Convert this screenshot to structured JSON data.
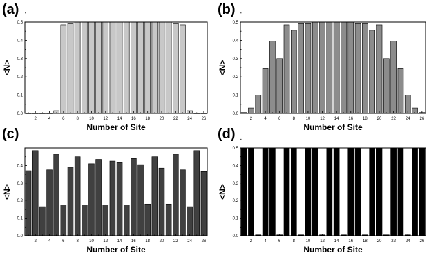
{
  "chart_data": [
    {
      "panel": "(a)",
      "type": "bar",
      "xlabel": "Number of Site",
      "ylabel": "<N>",
      "ylim": [
        0,
        0.5
      ],
      "yticks": [
        "0.0",
        "0.1",
        "0.2",
        "0.3",
        "0.4",
        "0.5"
      ],
      "xticks": [
        "2",
        "4",
        "6",
        "8",
        "10",
        "12",
        "14",
        "16",
        "18",
        "20",
        "22",
        "24",
        "26"
      ],
      "color": "#c8c8c8",
      "x": [
        1,
        2,
        3,
        4,
        5,
        6,
        7,
        8,
        9,
        10,
        11,
        12,
        13,
        14,
        15,
        16,
        17,
        18,
        19,
        20,
        21,
        22,
        23,
        24,
        25,
        26
      ],
      "values": [
        0.0,
        0.0,
        0.0,
        0.0,
        0.015,
        0.485,
        0.495,
        0.5,
        0.5,
        0.5,
        0.5,
        0.5,
        0.5,
        0.5,
        0.5,
        0.5,
        0.5,
        0.5,
        0.5,
        0.5,
        0.5,
        0.495,
        0.485,
        0.015,
        0.0,
        0.0
      ]
    },
    {
      "panel": "(b)",
      "type": "bar",
      "xlabel": "Number of Site",
      "ylabel": "<N>",
      "ylim": [
        0,
        0.5
      ],
      "yticks": [
        "0.0",
        "0.1",
        "0.2",
        "0.3",
        "0.4",
        "0.5"
      ],
      "xticks": [
        "2",
        "4",
        "6",
        "8",
        "10",
        "12",
        "14",
        "16",
        "18",
        "20",
        "22",
        "24",
        "26"
      ],
      "color": "#8c8c8c",
      "x": [
        1,
        2,
        3,
        4,
        5,
        6,
        7,
        8,
        9,
        10,
        11,
        12,
        13,
        14,
        15,
        16,
        17,
        18,
        19,
        20,
        21,
        22,
        23,
        24,
        25,
        26
      ],
      "values": [
        0.005,
        0.03,
        0.1,
        0.245,
        0.395,
        0.3,
        0.485,
        0.455,
        0.495,
        0.495,
        0.5,
        0.5,
        0.5,
        0.5,
        0.5,
        0.5,
        0.495,
        0.495,
        0.455,
        0.485,
        0.3,
        0.395,
        0.245,
        0.1,
        0.03,
        0.005
      ]
    },
    {
      "panel": "(c)",
      "type": "bar",
      "xlabel": "Number of Site",
      "ylabel": "<N>",
      "ylim": [
        0,
        0.5
      ],
      "yticks": [
        "0.0",
        "0.1",
        "0.2",
        "0.3",
        "0.4"
      ],
      "xticks": [
        "2",
        "4",
        "6",
        "8",
        "10",
        "12",
        "14",
        "16",
        "18",
        "20",
        "22",
        "24",
        "26"
      ],
      "color": "#404040",
      "x": [
        1,
        2,
        3,
        4,
        5,
        6,
        7,
        8,
        9,
        10,
        11,
        12,
        13,
        14,
        15,
        16,
        17,
        18,
        19,
        20,
        21,
        22,
        23,
        24,
        25,
        26
      ],
      "values": [
        0.37,
        0.485,
        0.165,
        0.375,
        0.465,
        0.175,
        0.39,
        0.45,
        0.175,
        0.41,
        0.435,
        0.175,
        0.425,
        0.42,
        0.175,
        0.44,
        0.405,
        0.18,
        0.45,
        0.385,
        0.18,
        0.465,
        0.375,
        0.165,
        0.485,
        0.365
      ]
    },
    {
      "panel": "(d)",
      "type": "bar",
      "xlabel": "Number of Site",
      "ylabel": "<N>",
      "ylim": [
        0,
        0.5
      ],
      "yticks": [
        "0.0",
        "0.1",
        "0.2",
        "0.3",
        "0.4",
        "0.5"
      ],
      "xticks": [
        "2",
        "4",
        "6",
        "8",
        "10",
        "12",
        "14",
        "16",
        "18",
        "20",
        "22",
        "24",
        "26"
      ],
      "color": "#000000",
      "x": [
        1,
        2,
        3,
        4,
        5,
        6,
        7,
        8,
        9,
        10,
        11,
        12,
        13,
        14,
        15,
        16,
        17,
        18,
        19,
        20,
        21,
        22,
        23,
        24,
        25,
        26
      ],
      "values": [
        0.5,
        0.5,
        0.005,
        0.5,
        0.5,
        0.005,
        0.5,
        0.5,
        0.005,
        0.5,
        0.5,
        0.005,
        0.5,
        0.5,
        0.005,
        0.5,
        0.5,
        0.005,
        0.5,
        0.5,
        0.005,
        0.5,
        0.5,
        0.005,
        0.5,
        0.5
      ]
    }
  ]
}
